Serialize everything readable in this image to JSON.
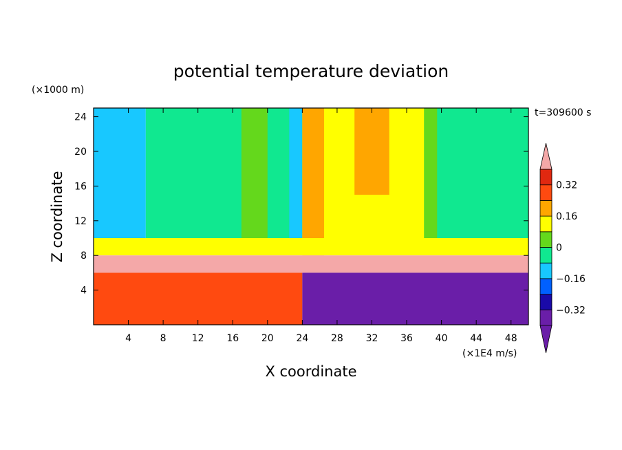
{
  "chart_data": {
    "type": "heatmap",
    "title": "potential temperature deviation",
    "xlabel": "X coordinate",
    "ylabel": "Z coordinate",
    "x_unit": "(×1E4 m/s)",
    "y_unit": "(×1000 m)",
    "time_label": "t=309600 s",
    "xlim": [
      0,
      50
    ],
    "ylim": [
      0,
      25
    ],
    "x_ticks": [
      4,
      8,
      12,
      16,
      20,
      24,
      28,
      32,
      36,
      40,
      44,
      48
    ],
    "y_ticks": [
      4,
      8,
      12,
      16,
      20,
      24
    ],
    "colorbar": {
      "levels": [
        -0.4,
        -0.32,
        -0.24,
        -0.16,
        -0.08,
        0,
        0.08,
        0.16,
        0.24,
        0.32,
        0.4
      ],
      "labels": [
        "0.32",
        "0.16",
        "0",
        "−0.16",
        "−0.32"
      ],
      "label_values": [
        0.32,
        0.16,
        0,
        -0.16,
        -0.32
      ],
      "colors": [
        "#6a1ea8",
        "#1a0aa8",
        "#0060ff",
        "#18c8ff",
        "#10e890",
        "#64d81c",
        "#ffff00",
        "#ffa600",
        "#ff4a10",
        "#e02810"
      ],
      "over_color": "#f4a8a8",
      "under_color": "#6a1ea8",
      "extend": "both"
    },
    "regions": [
      {
        "x": [
          0,
          6
        ],
        "z": [
          10,
          25
        ],
        "value": -0.12
      },
      {
        "x": [
          6,
          50
        ],
        "z": [
          10,
          25
        ],
        "value": -0.04
      },
      {
        "x": [
          17,
          20
        ],
        "z": [
          10,
          25
        ],
        "value": 0.04
      },
      {
        "x": [
          22.5,
          24
        ],
        "z": [
          10,
          25
        ],
        "value": -0.12
      },
      {
        "x": [
          24,
          38
        ],
        "z": [
          10,
          25
        ],
        "value": 0.12
      },
      {
        "x": [
          24,
          26.5
        ],
        "z": [
          8,
          25
        ],
        "value": 0.2
      },
      {
        "x": [
          30,
          34
        ],
        "z": [
          15,
          25
        ],
        "value": 0.2
      },
      {
        "x": [
          38,
          39.5
        ],
        "z": [
          10,
          25
        ],
        "value": 0.04
      },
      {
        "x": [
          0,
          50
        ],
        "z": [
          8,
          10
        ],
        "value": 0.12
      },
      {
        "x": [
          0,
          50
        ],
        "z": [
          6,
          8
        ],
        "value": 0.45
      },
      {
        "x": [
          0,
          24
        ],
        "z": [
          0,
          6
        ],
        "value": 0.3
      },
      {
        "x": [
          24,
          50
        ],
        "z": [
          0,
          6
        ],
        "value": -0.35
      }
    ]
  }
}
